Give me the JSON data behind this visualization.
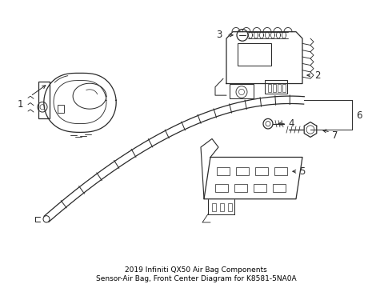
{
  "bg_color": "#ffffff",
  "line_color": "#2a2a2a",
  "fig_width": 4.9,
  "fig_height": 3.6,
  "dpi": 100,
  "label_fontsize": 8.5,
  "title": "2019 Infiniti QX50 Air Bag Components\nSensor-Air Bag, Front Center Diagram for K8581-5NA0A",
  "title_fontsize": 6.5
}
